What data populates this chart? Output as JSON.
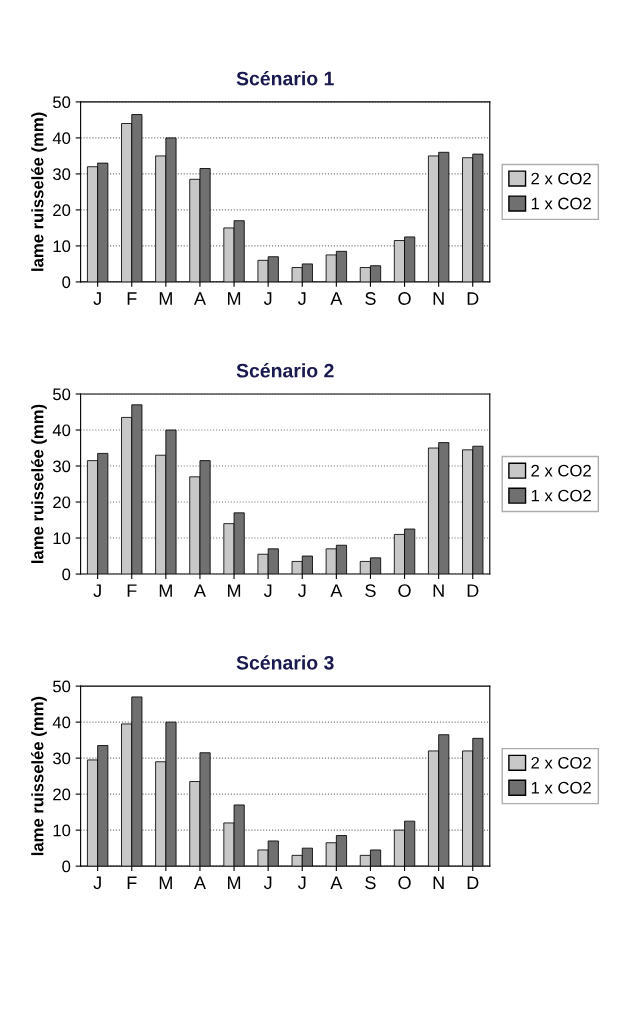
{
  "chart_data": [
    {
      "type": "bar",
      "title": "Scénario 1",
      "ylabel": "lame ruisselée (mm)",
      "categories": [
        "J",
        "F",
        "M",
        "A",
        "M",
        "J",
        "J",
        "A",
        "S",
        "O",
        "N",
        "D"
      ],
      "ylim": [
        0,
        50
      ],
      "yticks": [
        0,
        10,
        20,
        30,
        40,
        50
      ],
      "grid": "y",
      "legend": "right",
      "series": [
        {
          "name": "2 x CO2",
          "color": "#c8c8c8",
          "values": [
            32,
            44,
            35,
            28.5,
            15,
            6,
            4,
            7.5,
            4,
            11.5,
            35,
            34.5
          ]
        },
        {
          "name": "1 x CO2",
          "color": "#707070",
          "values": [
            33,
            46.5,
            40,
            31.5,
            17,
            7,
            5,
            8.5,
            4.5,
            12.5,
            36,
            35.5
          ]
        }
      ]
    },
    {
      "type": "bar",
      "title": "Scénario 2",
      "ylabel": "lame ruisselée (mm)",
      "categories": [
        "J",
        "F",
        "M",
        "A",
        "M",
        "J",
        "J",
        "A",
        "S",
        "O",
        "N",
        "D"
      ],
      "ylim": [
        0,
        50
      ],
      "yticks": [
        0,
        10,
        20,
        30,
        40,
        50
      ],
      "grid": "y",
      "legend": "right",
      "series": [
        {
          "name": "2 x CO2",
          "color": "#c8c8c8",
          "values": [
            31.5,
            43.5,
            33,
            27,
            14,
            5.5,
            3.5,
            7,
            3.5,
            11,
            35,
            34.5
          ]
        },
        {
          "name": "1 x CO2",
          "color": "#707070",
          "values": [
            33.5,
            47,
            40,
            31.5,
            17,
            7,
            5,
            8,
            4.5,
            12.5,
            36.5,
            35.5
          ]
        }
      ]
    },
    {
      "type": "bar",
      "title": "Scénario 3",
      "ylabel": "lame ruisselée (mm)",
      "categories": [
        "J",
        "F",
        "M",
        "A",
        "M",
        "J",
        "J",
        "A",
        "S",
        "O",
        "N",
        "D"
      ],
      "ylim": [
        0,
        50
      ],
      "yticks": [
        0,
        10,
        20,
        30,
        40,
        50
      ],
      "grid": "y",
      "legend": "right",
      "series": [
        {
          "name": "2 x CO2",
          "color": "#c8c8c8",
          "values": [
            29.5,
            39.5,
            29,
            23.5,
            12,
            4.5,
            3,
            6.5,
            3,
            10,
            32,
            32
          ]
        },
        {
          "name": "1 x CO2",
          "color": "#707070",
          "values": [
            33.5,
            47,
            40,
            31.5,
            17,
            7,
            5,
            8.5,
            4.5,
            12.5,
            36.5,
            35.5
          ]
        }
      ]
    }
  ]
}
